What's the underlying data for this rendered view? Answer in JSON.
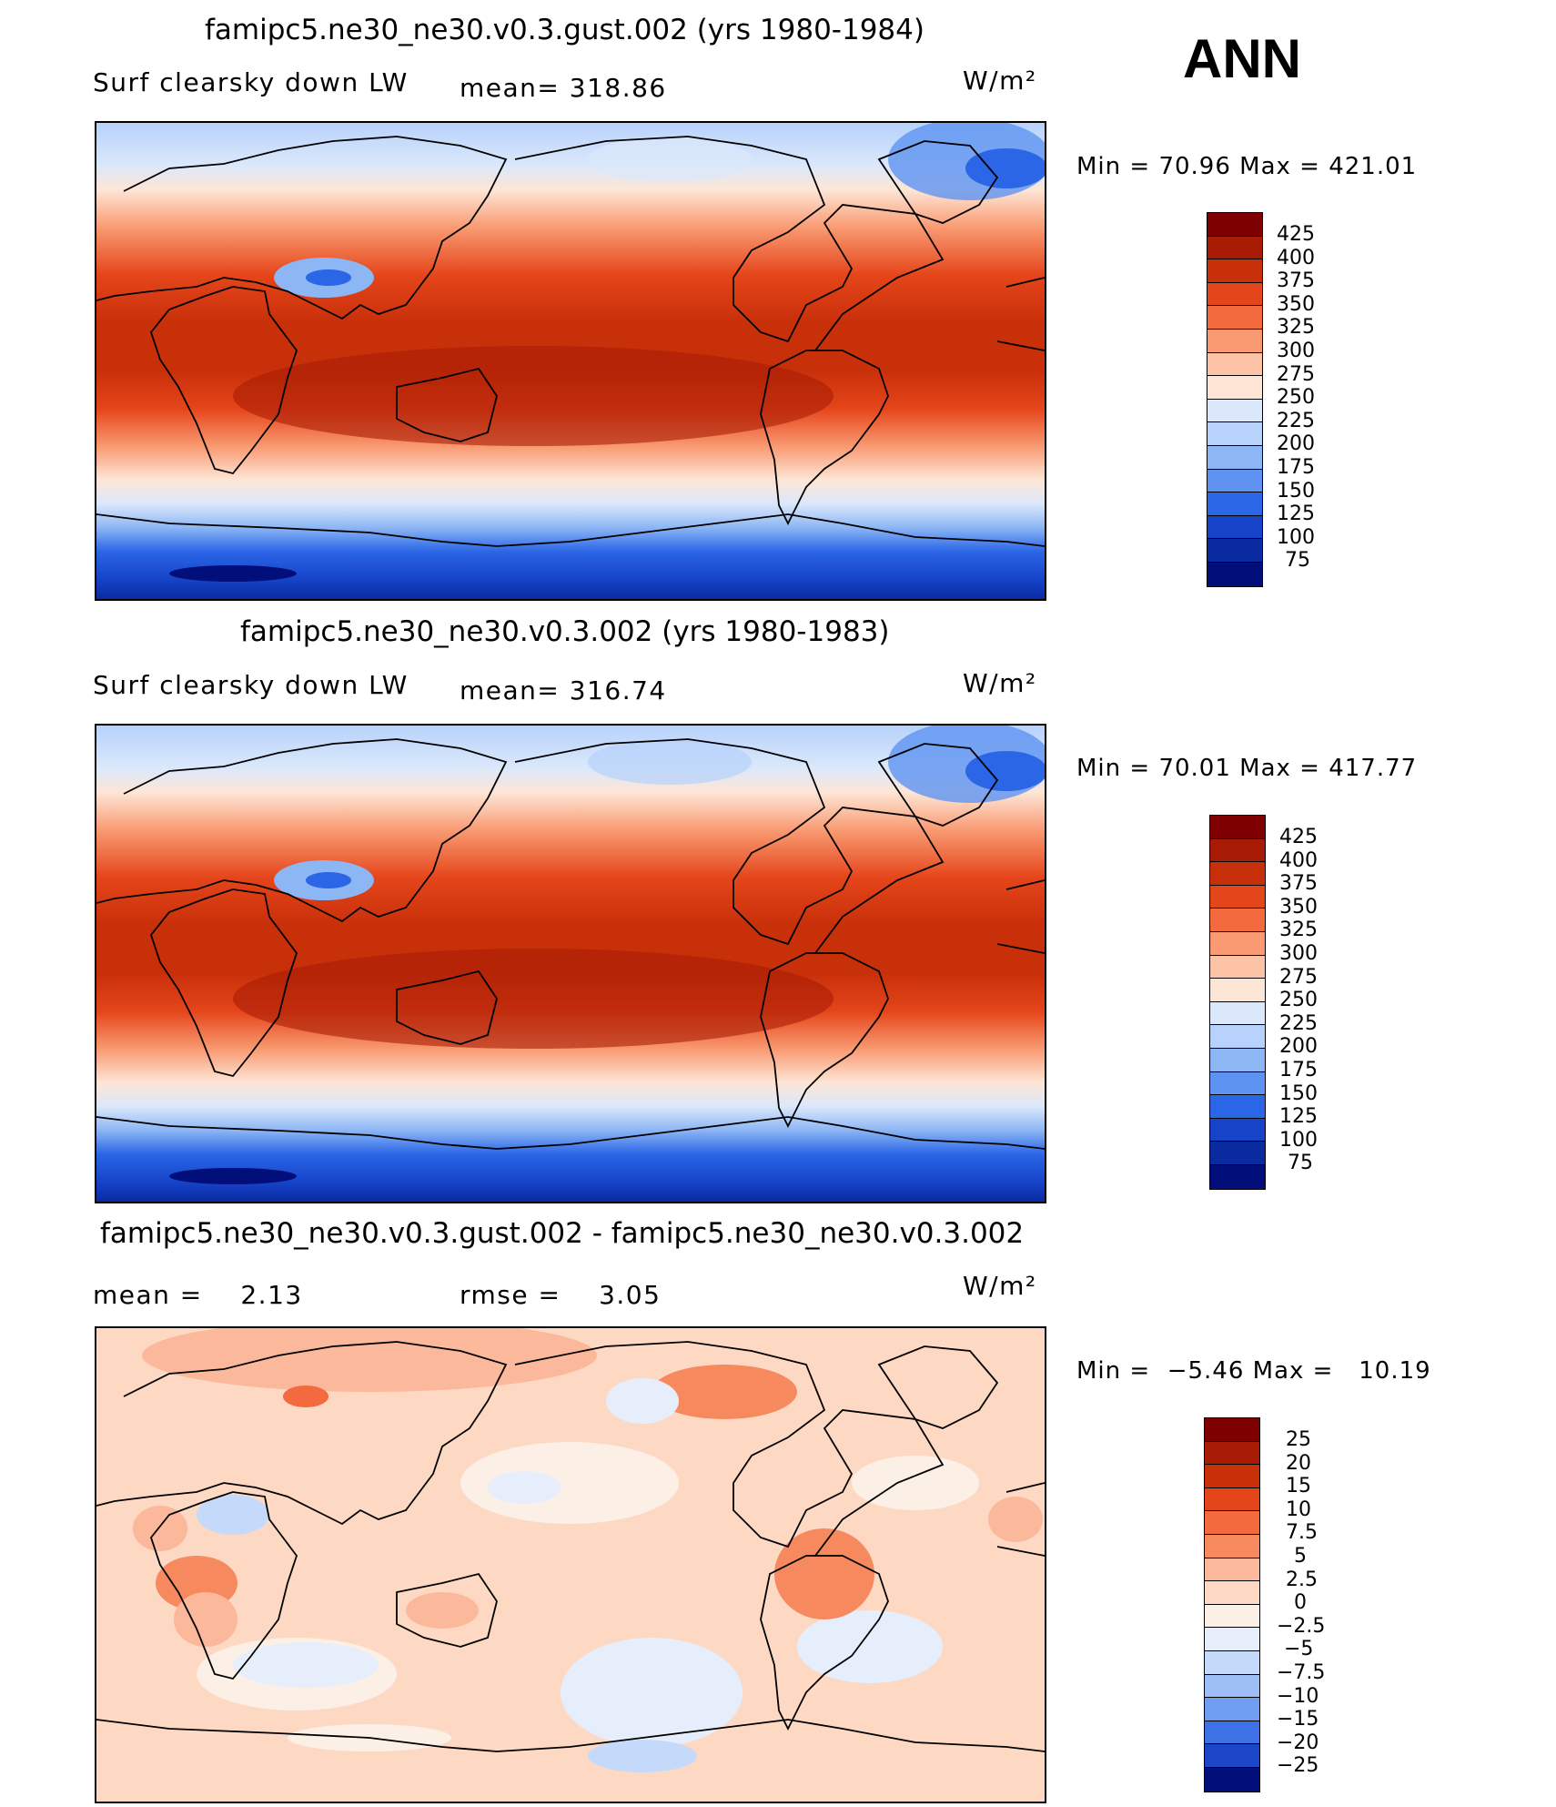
{
  "season": "ANN",
  "units": "W/m²",
  "panels": [
    {
      "title": "famipc5.ne30_ne30.v0.3.gust.002 (yrs 1980-1984)",
      "variable": "Surf clearsky down LW",
      "mean_label": "mean= 318.86",
      "min_max": "Min =   70.96 Max = 421.01",
      "colorbar_labels": [
        "425",
        "400",
        "375",
        "350",
        "325",
        "300",
        "275",
        "250",
        "225",
        "200",
        "175",
        "150",
        "125",
        "100",
        "75"
      ]
    },
    {
      "title": "famipc5.ne30_ne30.v0.3.002 (yrs 1980-1983)",
      "variable": "Surf clearsky down LW",
      "mean_label": "mean= 316.74",
      "min_max": "Min =   70.01 Max = 417.77",
      "colorbar_labels": [
        "425",
        "400",
        "375",
        "350",
        "325",
        "300",
        "275",
        "250",
        "225",
        "200",
        "175",
        "150",
        "125",
        "100",
        "75"
      ]
    },
    {
      "title": "famipc5.ne30_ne30.v0.3.gust.002 - famipc5.ne30_ne30.v0.3.002",
      "mean_label": "mean =    2.13",
      "rmse_label": "rmse =    3.05",
      "min_max": "Min =  −5.46 Max =   10.19",
      "colorbar_labels": [
        "25",
        "20",
        "15",
        "10",
        "7.5",
        "5",
        "2.5",
        "0",
        "−2.5",
        "−5",
        "−7.5",
        "−10",
        "−15",
        "−20",
        "−25"
      ]
    }
  ],
  "colors": {
    "abs_scale": [
      "#7f0000",
      "#a81c05",
      "#c8300a",
      "#e5451a",
      "#f26a3e",
      "#f99a72",
      "#fcc3a6",
      "#fde6d6",
      "#dbe8fb",
      "#b7d2fb",
      "#8db6f5",
      "#5e93f1",
      "#2b66e6",
      "#1643c8",
      "#0a2aa0",
      "#020f7a"
    ],
    "diff_scale": [
      "#7f0000",
      "#a81c05",
      "#c8300a",
      "#e5451a",
      "#f26a3e",
      "#f7895e",
      "#fbb89a",
      "#fdd9c4",
      "#fcefe6",
      "#e6eefb",
      "#c5dafb",
      "#9ebff6",
      "#6f9ef1",
      "#3f71e6",
      "#1c46c8",
      "#020f7a"
    ]
  }
}
